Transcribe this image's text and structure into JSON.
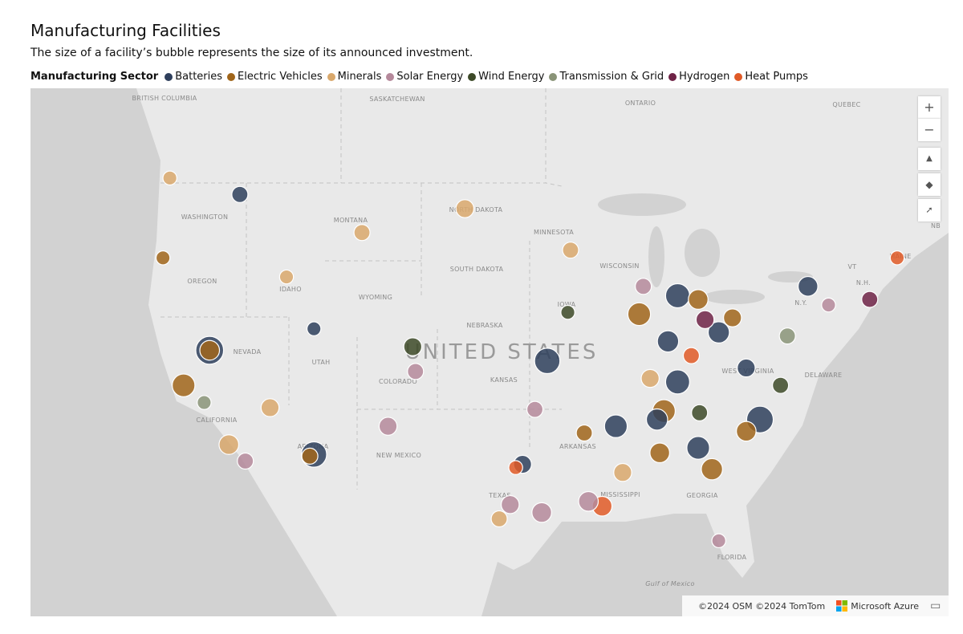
{
  "header": {
    "title": "Manufacturing Facilities",
    "subtitle": "The size of a facility’s bubble represents the size of its announced investment."
  },
  "legend": {
    "title": "Manufacturing Sector",
    "sectors": [
      {
        "name": "Batteries",
        "color": "#2e3f5c"
      },
      {
        "name": "Electric Vehicles",
        "color": "#a0651a"
      },
      {
        "name": "Minerals",
        "color": "#d9a86c"
      },
      {
        "name": "Solar Energy",
        "color": "#b5899b"
      },
      {
        "name": "Wind Energy",
        "color": "#3d4a28"
      },
      {
        "name": "Transmission & Grid",
        "color": "#8a9478"
      },
      {
        "name": "Hydrogen",
        "color": "#6e2346"
      },
      {
        "name": "Heat Pumps",
        "color": "#e05a27"
      }
    ]
  },
  "map_labels": [
    "BRITISH COLUMBIA",
    "SASKATCHEWAN",
    "ONTARIO",
    "QUEBEC",
    "WASHINGTON",
    "MONTANA",
    "NORTH DAKOTA",
    "MINNESOTA",
    "OREGON",
    "IDAHO",
    "WYOMING",
    "SOUTH DAKOTA",
    "WISCONSIN",
    "MAINE",
    "VT",
    "N.H.",
    "N.Y.",
    "IOWA",
    "NEBRASKA",
    "NEVADA",
    "UTAH",
    "UNITED STATES",
    "COLORADO",
    "KANSAS",
    "WEST VIRGINIA",
    "DELAWARE",
    "CALIFORNIA",
    "ARIZONA",
    "NEW MEXICO",
    "ARKANSAS",
    "TEXAS",
    "MISSISSIPPI",
    "GEORGIA",
    "FLORIDA",
    "Gulf of Mexico",
    "NB"
  ],
  "attribution": {
    "copyright": "©2024 OSM ©2024 TomTom",
    "provider": "Microsoft Azure"
  },
  "facilities": [
    [
      -119.6,
      39.5,
      0,
      12
    ],
    [
      -119.6,
      39.5,
      1,
      6
    ],
    [
      -112.0,
      33.4,
      0,
      10
    ],
    [
      -112.3,
      33.3,
      1,
      4
    ],
    [
      -95.0,
      38.9,
      0,
      10
    ],
    [
      -85.5,
      42.5,
      0,
      9
    ],
    [
      -84.0,
      42.3,
      1,
      6
    ],
    [
      -84.0,
      33.8,
      0,
      8
    ],
    [
      -83.0,
      32.5,
      1,
      7
    ],
    [
      -79.5,
      35.5,
      0,
      11
    ],
    [
      -80.5,
      34.8,
      1,
      6
    ],
    [
      -86.5,
      36.0,
      1,
      8
    ],
    [
      -87.0,
      35.5,
      0,
      7
    ],
    [
      -85.5,
      37.7,
      0,
      9
    ],
    [
      -82.5,
      40.5,
      0,
      7
    ],
    [
      -83.5,
      41.2,
      6,
      5
    ],
    [
      -97.7,
      30.3,
      3,
      5
    ],
    [
      -95.4,
      29.8,
      3,
      6
    ],
    [
      -96.8,
      32.8,
      0,
      5
    ],
    [
      -91.0,
      30.2,
      7,
      6
    ],
    [
      -92.0,
      30.5,
      3,
      6
    ],
    [
      -89.5,
      32.3,
      2,
      5
    ],
    [
      -121.5,
      37.5,
      1,
      8
    ],
    [
      -118.2,
      34.0,
      2,
      6
    ],
    [
      -117.0,
      33.0,
      3,
      4
    ],
    [
      -120.0,
      36.5,
      5,
      3
    ],
    [
      -123.0,
      44.5,
      1,
      3
    ],
    [
      -117.4,
      47.7,
      0,
      4
    ],
    [
      -122.5,
      48.5,
      2,
      3
    ],
    [
      -115.2,
      36.2,
      2,
      5
    ],
    [
      -112.0,
      40.7,
      0,
      3
    ],
    [
      -114.0,
      43.5,
      2,
      3
    ],
    [
      -108.5,
      45.8,
      2,
      4
    ],
    [
      -101.0,
      47.0,
      2,
      5
    ],
    [
      -93.5,
      41.6,
      4,
      3
    ],
    [
      -93.3,
      44.9,
      2,
      4
    ],
    [
      -88.0,
      43.0,
      3,
      4
    ],
    [
      -86.2,
      40.0,
      0,
      7
    ],
    [
      -88.3,
      41.5,
      1,
      8
    ],
    [
      -76.0,
      43.0,
      0,
      6
    ],
    [
      -74.5,
      42.0,
      3,
      3
    ],
    [
      -77.5,
      40.3,
      5,
      4
    ],
    [
      -71.5,
      42.3,
      6,
      4
    ],
    [
      -69.5,
      44.5,
      7,
      3
    ],
    [
      -104.8,
      39.7,
      4,
      5
    ],
    [
      -104.6,
      38.3,
      3,
      4
    ],
    [
      -106.6,
      35.1,
      3,
      5
    ],
    [
      -95.9,
      36.1,
      3,
      4
    ],
    [
      -92.3,
      34.7,
      1,
      4
    ],
    [
      -78.0,
      37.5,
      4,
      4
    ],
    [
      -80.5,
      38.5,
      0,
      5
    ],
    [
      -86.8,
      33.5,
      1,
      6
    ],
    [
      -82.5,
      28.0,
      3,
      3
    ],
    [
      -84.5,
      39.2,
      7,
      4
    ],
    [
      -81.5,
      41.3,
      1,
      5
    ],
    [
      -90.0,
      35.1,
      0,
      8
    ],
    [
      -87.5,
      37.9,
      2,
      5
    ],
    [
      -97.3,
      32.6,
      7,
      3
    ],
    [
      -98.5,
      29.4,
      2,
      4
    ],
    [
      -83.9,
      35.9,
      4,
      4
    ]
  ]
}
